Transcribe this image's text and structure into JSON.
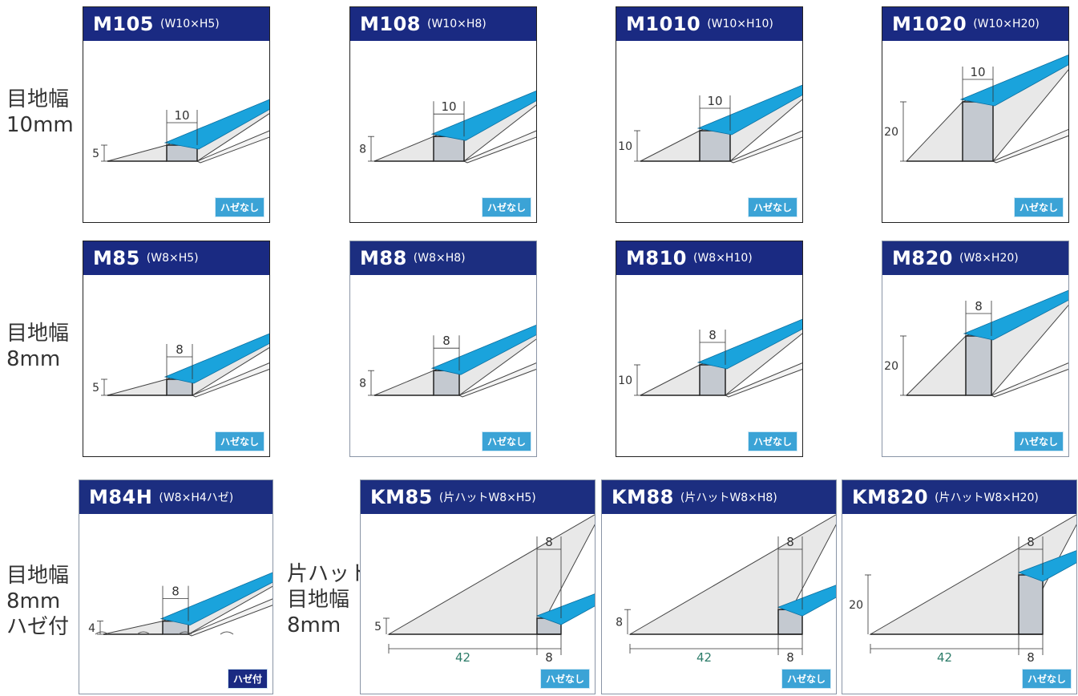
{
  "row_labels": [
    {
      "lines": [
        "目地幅",
        "10mm"
      ]
    },
    {
      "lines": [
        "目地幅",
        "8mm"
      ]
    },
    {
      "lines": [
        "目地幅",
        "8mm",
        "ハゼ付"
      ]
    },
    {
      "lines": [
        "片ハット",
        "目地幅",
        "8mm"
      ]
    }
  ],
  "panels": [
    {
      "model": "M105",
      "spec": "(W10×H5)",
      "width_label": "10",
      "height_label": "5",
      "badge": "ハゼなし"
    },
    {
      "model": "M108",
      "spec": "(W10×H8)",
      "width_label": "10",
      "height_label": "8",
      "badge": "ハゼなし"
    },
    {
      "model": "M1010",
      "spec": "(W10×H10)",
      "width_label": "10",
      "height_label": "10",
      "badge": "ハゼなし"
    },
    {
      "model": "M1020",
      "spec": "(W10×H20)",
      "width_label": "10",
      "height_label": "20",
      "badge": "ハゼなし"
    },
    {
      "model": "M85",
      "spec": "(W8×H5)",
      "width_label": "8",
      "height_label": "5",
      "badge": "ハゼなし"
    },
    {
      "model": "M88",
      "spec": "(W8×H8)",
      "width_label": "8",
      "height_label": "8",
      "badge": "ハゼなし"
    },
    {
      "model": "M810",
      "spec": "(W8×H10)",
      "width_label": "8",
      "height_label": "10",
      "badge": "ハゼなし"
    },
    {
      "model": "M820",
      "spec": "(W8×H20)",
      "width_label": "8",
      "height_label": "20",
      "badge": "ハゼなし"
    },
    {
      "model": "M84H",
      "spec": "(W8×H4ハゼ)",
      "width_label": "8",
      "height_label": "4",
      "badge": "ハゼ付"
    },
    {
      "model": "KM85",
      "spec": "(片ハットW8×H5)",
      "width_label": "8",
      "height_label": "5",
      "base_label": "42",
      "bottom_width_label": "8",
      "badge": "ハゼなし"
    },
    {
      "model": "KM88",
      "spec": "(片ハットW8×H8)",
      "width_label": "8",
      "height_label": "8",
      "base_label": "42",
      "bottom_width_label": "8",
      "badge": "ハゼなし"
    },
    {
      "model": "KM820",
      "spec": "(片ハットW8×H20)",
      "width_label": "8",
      "height_label": "20",
      "base_label": "42",
      "bottom_width_label": "8",
      "badge": "ハゼなし"
    }
  ],
  "colors": {
    "header": "#1a2a82",
    "tape": "#1aa3dc",
    "badge": "#3ba3d6",
    "profile_fill": "#e8e8e8",
    "channel_fill": "#c4c9d0"
  }
}
